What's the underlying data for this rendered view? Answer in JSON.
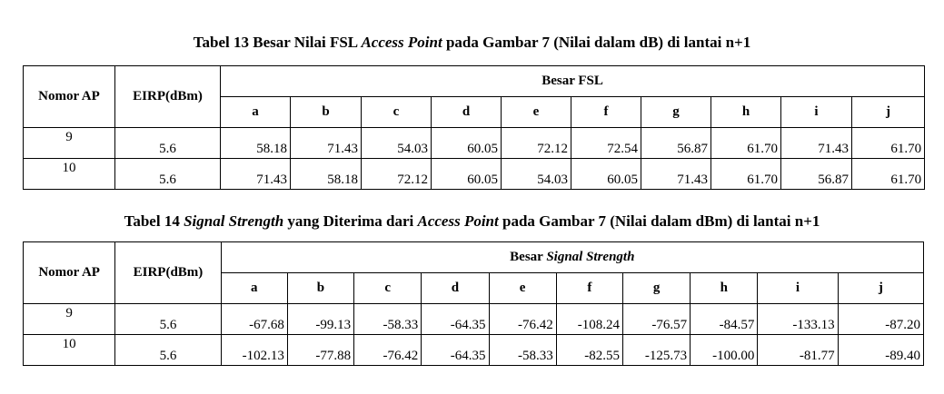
{
  "table13": {
    "caption_prefix": "Tabel 13 Besar Nilai FSL ",
    "caption_italic": "Access Point",
    "caption_suffix": " pada Gambar 7 (Nilai dalam dB) di lantai n+1",
    "header_ap": "Nomor AP",
    "header_eirp": "EIRP(dBm)",
    "header_group": "Besar FSL",
    "columns": [
      "a",
      "b",
      "c",
      "d",
      "e",
      "f",
      "g",
      "h",
      "i",
      "j"
    ],
    "rows": [
      {
        "ap": "9",
        "eirp": "5.6",
        "values": [
          "58.18",
          "71.43",
          "54.03",
          "60.05",
          "72.12",
          "72.54",
          "56.87",
          "61.70",
          "71.43",
          "61.70"
        ]
      },
      {
        "ap": "10",
        "eirp": "5.6",
        "values": [
          "71.43",
          "58.18",
          "72.12",
          "60.05",
          "54.03",
          "60.05",
          "71.43",
          "61.70",
          "56.87",
          "61.70"
        ]
      }
    ]
  },
  "table14": {
    "caption_prefix": "Tabel 14 ",
    "caption_italic1": "Signal Strength",
    "caption_middle": " yang Diterima dari ",
    "caption_italic2": "Access Point",
    "caption_suffix": " pada Gambar 7 (Nilai dalam dBm) di lantai n+1",
    "header_ap": "Nomor AP",
    "header_eirp": "EIRP(dBm)",
    "header_group_prefix": "Besar ",
    "header_group_italic": "Signal Strength",
    "columns": [
      "a",
      "b",
      "c",
      "d",
      "e",
      "f",
      "g",
      "h",
      "i",
      "j"
    ],
    "rows": [
      {
        "ap": "9",
        "eirp": "5.6",
        "values": [
          "-67.68",
          "-99.13",
          "-58.33",
          "-64.35",
          "-76.42",
          "-108.24",
          "-76.57",
          "-84.57",
          "-133.13",
          "-87.20"
        ]
      },
      {
        "ap": "10",
        "eirp": "5.6",
        "values": [
          "-102.13",
          "-77.88",
          "-76.42",
          "-64.35",
          "-58.33",
          "-82.55",
          "-125.73",
          "-100.00",
          "-81.77",
          "-89.40"
        ]
      }
    ]
  }
}
